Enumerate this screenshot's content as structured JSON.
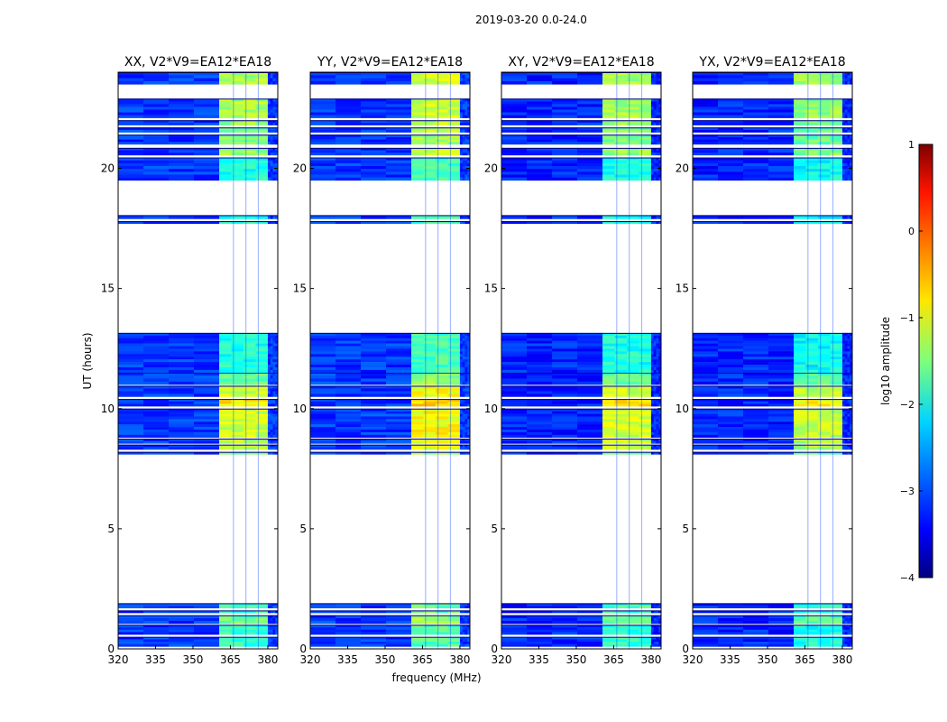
{
  "chart_data": {
    "type": "heatmap",
    "title": "2019-03-20 0.0-24.0",
    "xlabel": "frequency (MHz)",
    "ylabel": "UT (hours)",
    "xlim": [
      320,
      384
    ],
    "ylim": [
      0,
      24
    ],
    "xticks": [
      "320",
      "335",
      "350",
      "365",
      "380"
    ],
    "xtick_values": [
      320,
      335,
      350,
      365,
      380
    ],
    "yticks": [
      "0",
      "5",
      "10",
      "15",
      "20"
    ],
    "ytick_values": [
      0,
      5,
      10,
      15,
      20
    ],
    "rfi_band_mhz": [
      360.5,
      380
    ],
    "panels": [
      {
        "title": "XX, V2*V9=EA12*EA18",
        "bg_level": -3.1,
        "rfi_boost": 0
      },
      {
        "title": "YY, V2*V9=EA12*EA18",
        "bg_level": -3.1,
        "rfi_boost": 0.2
      },
      {
        "title": "XY, V2*V9=EA12*EA18",
        "bg_level": -3.2,
        "rfi_boost": 0
      },
      {
        "title": "YX, V2*V9=EA12*EA18",
        "bg_level": -3.2,
        "rfi_boost": -0.1
      }
    ],
    "time_bands": [
      {
        "hours": [
          0.1,
          0.5
        ],
        "rfi": -1.9
      },
      {
        "hours": [
          0.6,
          1.0
        ],
        "rfi": -1.9
      },
      {
        "hours": [
          1.05,
          1.4
        ],
        "rfi": -1.6
      },
      {
        "hours": [
          1.5,
          1.6
        ],
        "rfi": -1.8
      },
      {
        "hours": [
          1.7,
          1.9
        ],
        "rfi": -1.8
      },
      {
        "hours": [
          8.1,
          8.2
        ],
        "rfi": -1.5
      },
      {
        "hours": [
          8.3,
          8.5
        ],
        "rfi": -1.2
      },
      {
        "hours": [
          8.55,
          8.75
        ],
        "rfi": -1.2
      },
      {
        "hours": [
          8.8,
          10.0
        ],
        "rfi": -1.1
      },
      {
        "hours": [
          10.1,
          10.4
        ],
        "rfi": -0.8
      },
      {
        "hours": [
          10.5,
          10.95
        ],
        "rfi": -1.1
      },
      {
        "hours": [
          11.0,
          11.5
        ],
        "rfi": -1.6
      },
      {
        "hours": [
          11.5,
          13.15
        ],
        "rfi": -2.0
      },
      {
        "hours": [
          17.7,
          17.8
        ],
        "rfi": -2.0
      },
      {
        "hours": [
          17.9,
          18.05
        ],
        "rfi": -2.0
      },
      {
        "hours": [
          19.5,
          20.45
        ],
        "rfi": -2.0
      },
      {
        "hours": [
          20.55,
          20.85
        ],
        "rfi": -1.4
      },
      {
        "hours": [
          21.0,
          21.4
        ],
        "rfi": -1.5
      },
      {
        "hours": [
          21.5,
          21.7
        ],
        "rfi": -1.5
      },
      {
        "hours": [
          21.8,
          22.0
        ],
        "rfi": -1.4
      },
      {
        "hours": [
          22.1,
          22.9
        ],
        "rfi": -1.3
      },
      {
        "hours": [
          23.5,
          24.0
        ],
        "rfi": -1.3
      }
    ],
    "colorbar": {
      "label": "log10 amplitude",
      "range": [
        -4,
        1
      ],
      "ticks": [
        "1",
        "0",
        "−1",
        "−2",
        "−3",
        "−4"
      ],
      "tick_values": [
        1,
        0,
        -1,
        -2,
        -3,
        -4
      ]
    }
  }
}
